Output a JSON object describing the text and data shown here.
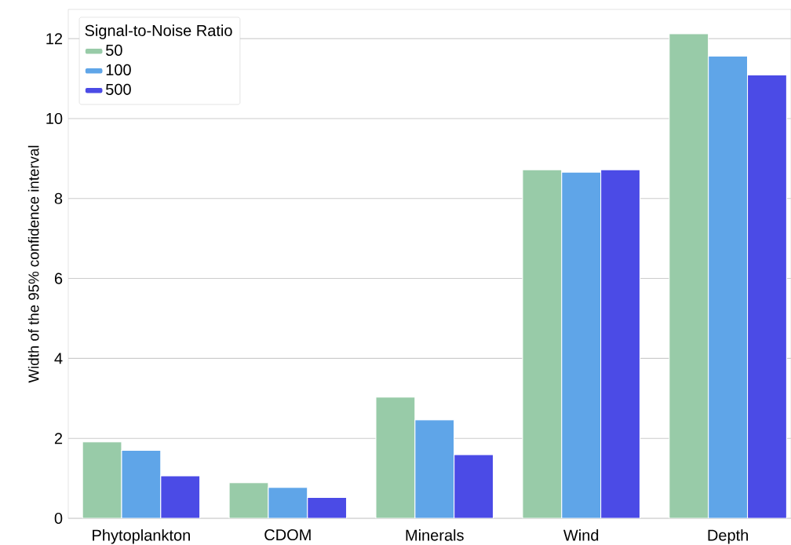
{
  "chart_data": {
    "type": "bar",
    "ylabel": "Width of the 95% confidence interval",
    "legend_title": "Signal-to-Noise Ratio",
    "categories": [
      "Phytoplankton",
      "CDOM",
      "Minerals",
      "Wind",
      "Depth"
    ],
    "series": [
      {
        "name": "50",
        "color": "#98cba8",
        "values": [
          1.91,
          0.89,
          3.03,
          8.72,
          12.12
        ]
      },
      {
        "name": "100",
        "color": "#5fa5e8",
        "values": [
          1.7,
          0.77,
          2.46,
          8.66,
          11.56
        ]
      },
      {
        "name": "500",
        "color": "#4b4be6",
        "values": [
          1.06,
          0.52,
          1.59,
          8.72,
          11.09
        ]
      }
    ],
    "ylim": [
      0,
      12.73
    ],
    "yticks": [
      0,
      2,
      4,
      6,
      8,
      10,
      12
    ],
    "grid": "y",
    "legend": "top left"
  }
}
